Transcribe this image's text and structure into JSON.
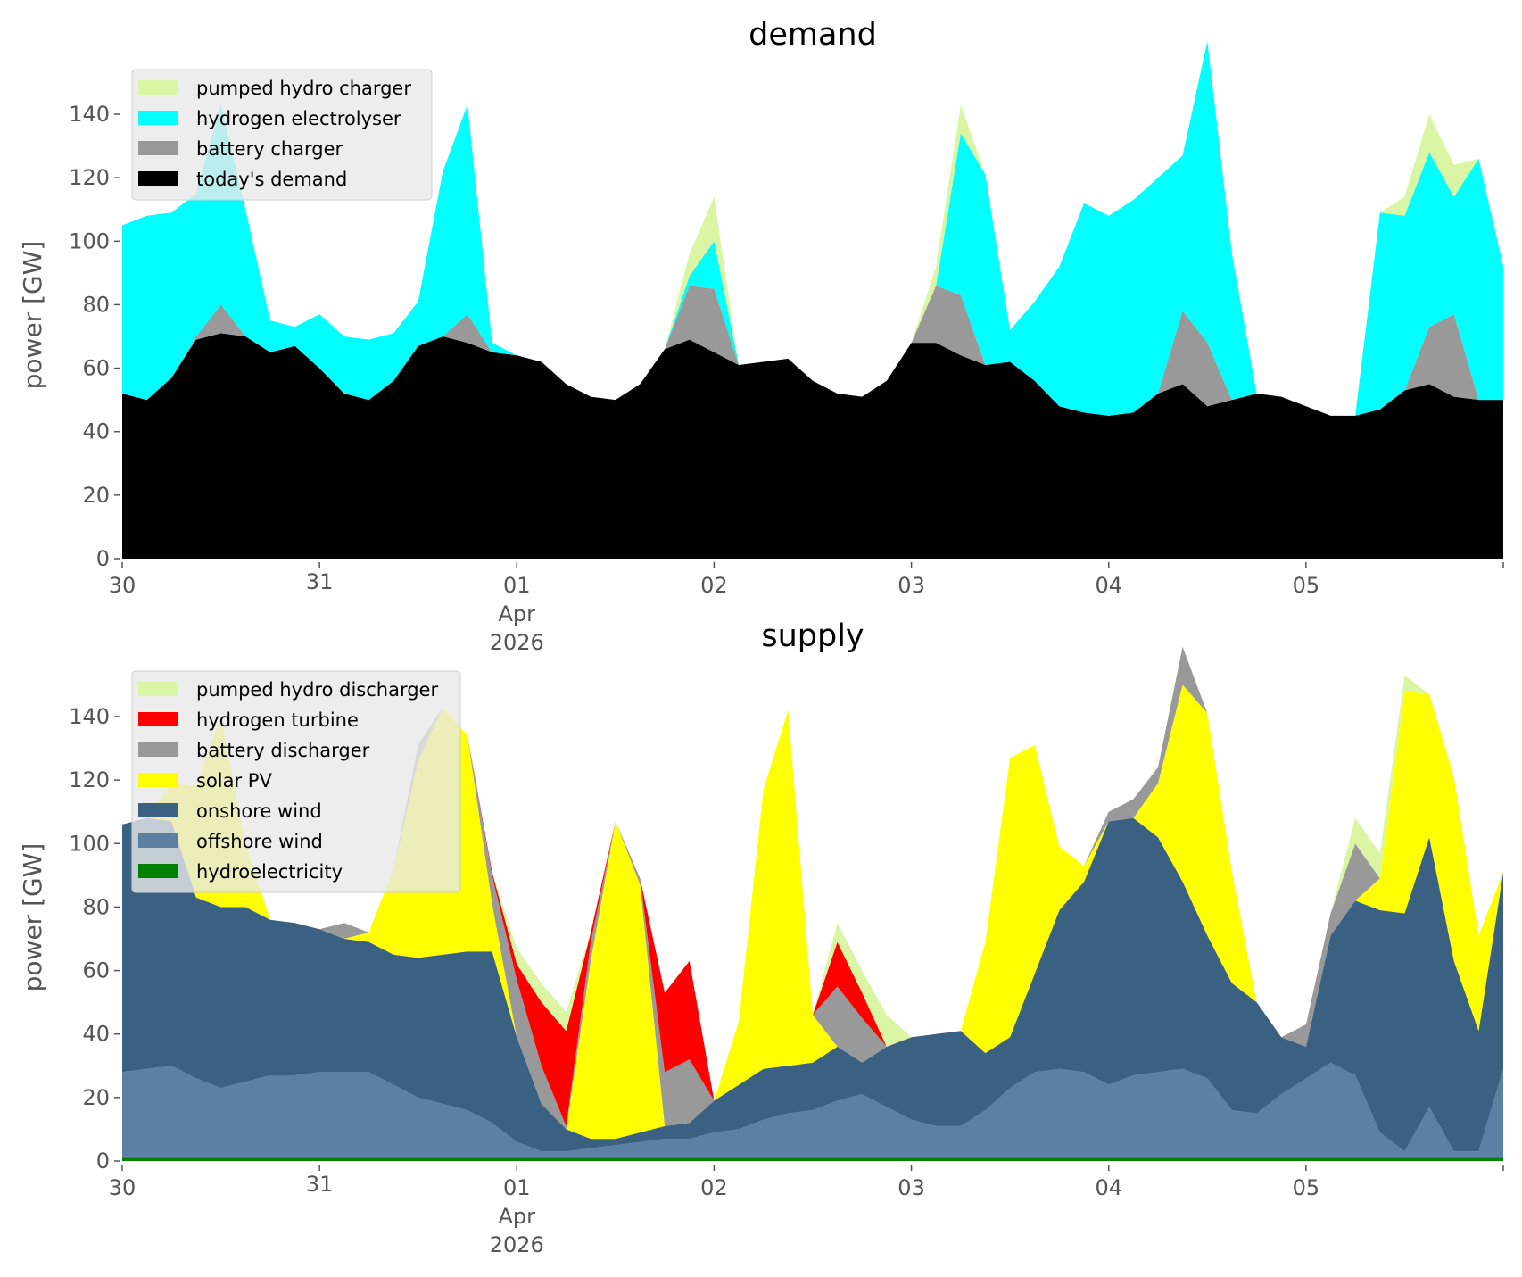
{
  "chart_data": [
    {
      "type": "area",
      "stacked": true,
      "title": "demand",
      "xlabel": "",
      "ylabel": "power [GW]",
      "ylim": [
        0,
        150
      ],
      "yticks": [
        0,
        20,
        40,
        60,
        80,
        100,
        120,
        140
      ],
      "xticks": [
        "30",
        "31",
        "01",
        "02",
        "03",
        "04",
        "05",
        ""
      ],
      "xtick_sublabel": [
        "Apr",
        "2026"
      ],
      "x_start": "2026-03-30 00:00",
      "x_end": "2026-04-06 00:00",
      "x_step_hours": 3,
      "grid": false,
      "legend_position": "top-left",
      "series": [
        {
          "name": "today's demand",
          "color": "#000000",
          "values": [
            52,
            50,
            57,
            69,
            71,
            70,
            65,
            67,
            60,
            52,
            50,
            56,
            67,
            70,
            68,
            65,
            64,
            62,
            55,
            51,
            50,
            55,
            66,
            69,
            65,
            61,
            62,
            63,
            56,
            52,
            51,
            56,
            68,
            68,
            64,
            61,
            62,
            56,
            48,
            46,
            45,
            46,
            52,
            55,
            48,
            50,
            52,
            51,
            48,
            45,
            45,
            47,
            53,
            55,
            51,
            50,
            50
          ]
        },
        {
          "name": "battery charger",
          "color": "#999999",
          "values": [
            0,
            0,
            0,
            1,
            9,
            0,
            0,
            0,
            0,
            0,
            0,
            0,
            0,
            0,
            9,
            0,
            0,
            0,
            0,
            0,
            0,
            0,
            0,
            17,
            20,
            0,
            0,
            0,
            0,
            0,
            0,
            0,
            0,
            18,
            19,
            0,
            0,
            0,
            0,
            0,
            0,
            0,
            0,
            23,
            20,
            0,
            0,
            0,
            0,
            0,
            0,
            0,
            0,
            18,
            26,
            0,
            0
          ]
        },
        {
          "name": "hydrogen electrolyser",
          "color": "#00ffff",
          "values": [
            53,
            58,
            52,
            45,
            63,
            40,
            10,
            6,
            17,
            18,
            19,
            15,
            14,
            52,
            66,
            3,
            0,
            0,
            0,
            0,
            0,
            0,
            0,
            3,
            15,
            0,
            0,
            0,
            0,
            0,
            0,
            0,
            0,
            0,
            51,
            60,
            10,
            25,
            44,
            66,
            63,
            67,
            68,
            49,
            95,
            46,
            0,
            0,
            0,
            0,
            0,
            62,
            55,
            55,
            37,
            76,
            42
          ]
        },
        {
          "name": "pumped hydro charger",
          "color": "#daf6a4",
          "values": [
            0,
            0,
            0,
            0,
            0,
            0,
            0,
            0,
            0,
            0,
            0,
            0,
            0,
            0,
            0,
            0,
            0,
            0,
            0,
            0,
            0,
            0,
            0,
            7,
            14,
            0,
            0,
            0,
            0,
            0,
            0,
            0,
            0,
            6,
            9,
            0,
            0,
            0,
            0,
            0,
            0,
            0,
            0,
            0,
            0,
            0,
            0,
            0,
            0,
            0,
            0,
            0,
            6,
            12,
            10,
            0,
            0
          ]
        }
      ]
    },
    {
      "type": "area",
      "stacked": true,
      "title": "supply",
      "xlabel": "",
      "ylabel": "power [GW]",
      "ylim": [
        0,
        150
      ],
      "yticks": [
        0,
        20,
        40,
        60,
        80,
        100,
        120,
        140
      ],
      "xticks": [
        "30",
        "31",
        "01",
        "02",
        "03",
        "04",
        "05",
        ""
      ],
      "xtick_sublabel": [
        "Apr",
        "2026"
      ],
      "x_start": "2026-03-30 00:00",
      "x_end": "2026-04-06 00:00",
      "x_step_hours": 3,
      "grid": false,
      "legend_position": "top-left",
      "series": [
        {
          "name": "hydroelectricity",
          "color": "#008000",
          "values": [
            1,
            1,
            1,
            1,
            1,
            1,
            1,
            1,
            1,
            1,
            1,
            1,
            1,
            1,
            1,
            1,
            1,
            1,
            1,
            1,
            1,
            1,
            1,
            1,
            1,
            1,
            1,
            1,
            1,
            1,
            1,
            1,
            1,
            1,
            1,
            1,
            1,
            1,
            1,
            1,
            1,
            1,
            1,
            1,
            1,
            1,
            1,
            1,
            1,
            1,
            1,
            1,
            1,
            1,
            1,
            1,
            1
          ]
        },
        {
          "name": "offshore wind",
          "color": "#5b80a3",
          "values": [
            27,
            28,
            29,
            25,
            22,
            24,
            26,
            26,
            27,
            27,
            27,
            23,
            19,
            17,
            15,
            11,
            5,
            2,
            2,
            3,
            4,
            5,
            6,
            6,
            8,
            9,
            12,
            14,
            15,
            18,
            20,
            16,
            12,
            10,
            10,
            15,
            22,
            27,
            28,
            27,
            23,
            26,
            27,
            28,
            25,
            15,
            14,
            20,
            25,
            30,
            26,
            8,
            2,
            16,
            2,
            2,
            28
          ]
        },
        {
          "name": "onshore wind",
          "color": "#3b6182",
          "values": [
            78,
            79,
            77,
            57,
            57,
            55,
            49,
            48,
            45,
            42,
            41,
            41,
            44,
            47,
            50,
            54,
            33,
            15,
            7,
            3,
            2,
            3,
            4,
            5,
            10,
            14,
            16,
            15,
            15,
            17,
            10,
            19,
            26,
            29,
            30,
            18,
            16,
            31,
            50,
            60,
            83,
            81,
            74,
            59,
            45,
            40,
            35,
            18,
            10,
            40,
            55,
            70,
            75,
            85,
            60,
            38,
            62
          ]
        },
        {
          "name": "solar PV",
          "color": "#ffff00",
          "values": [
            0,
            0,
            12,
            35,
            60,
            20,
            0,
            0,
            0,
            0,
            3,
            27,
            62,
            78,
            68,
            15,
            0,
            0,
            0,
            56,
            100,
            78,
            0,
            0,
            0,
            20,
            88,
            112,
            15,
            0,
            0,
            0,
            0,
            0,
            0,
            35,
            88,
            72,
            20,
            5,
            0,
            0,
            17,
            62,
            70,
            35,
            0,
            0,
            0,
            0,
            0,
            10,
            70,
            45,
            58,
            30,
            0
          ]
        },
        {
          "name": "battery discharger",
          "color": "#999999",
          "values": [
            0,
            0,
            0,
            0,
            0,
            0,
            0,
            0,
            0,
            5,
            0,
            0,
            5,
            0,
            0,
            9,
            18,
            12,
            1,
            6,
            0,
            2,
            17,
            20,
            0,
            0,
            0,
            0,
            0,
            19,
            14,
            0,
            0,
            0,
            0,
            0,
            0,
            0,
            0,
            0,
            3,
            6,
            5,
            12,
            0,
            0,
            0,
            0,
            7,
            7,
            18,
            0,
            0,
            0,
            0,
            0,
            0
          ]
        },
        {
          "name": "hydrogen turbine",
          "color": "#ff0000",
          "values": [
            0,
            0,
            0,
            0,
            0,
            0,
            0,
            0,
            0,
            0,
            0,
            0,
            0,
            0,
            0,
            1,
            5,
            20,
            30,
            3,
            0,
            0,
            25,
            31,
            0,
            0,
            0,
            0,
            0,
            14,
            8,
            0,
            0,
            0,
            0,
            0,
            0,
            0,
            0,
            0,
            0,
            0,
            0,
            0,
            0,
            0,
            0,
            0,
            0,
            0,
            0,
            0,
            0,
            0,
            0,
            0,
            0
          ]
        },
        {
          "name": "pumped hydro discharger",
          "color": "#daf6a4",
          "values": [
            0,
            0,
            0,
            0,
            0,
            0,
            0,
            0,
            0,
            0,
            0,
            0,
            0,
            0,
            0,
            0,
            5,
            6,
            6,
            0,
            0,
            0,
            0,
            0,
            0,
            0,
            0,
            0,
            0,
            6,
            7,
            10,
            0,
            0,
            0,
            0,
            0,
            0,
            0,
            0,
            0,
            0,
            0,
            0,
            0,
            0,
            0,
            0,
            0,
            0,
            8,
            8,
            5,
            0,
            0,
            0,
            0
          ]
        }
      ]
    }
  ],
  "legends": {
    "demand": [
      "pumped hydro charger",
      "hydrogen electrolyser",
      "battery charger",
      "today's demand"
    ],
    "supply": [
      "pumped hydro discharger",
      "hydrogen turbine",
      "battery discharger",
      "solar PV",
      "onshore wind",
      "offshore wind",
      "hydroelectricity"
    ]
  }
}
